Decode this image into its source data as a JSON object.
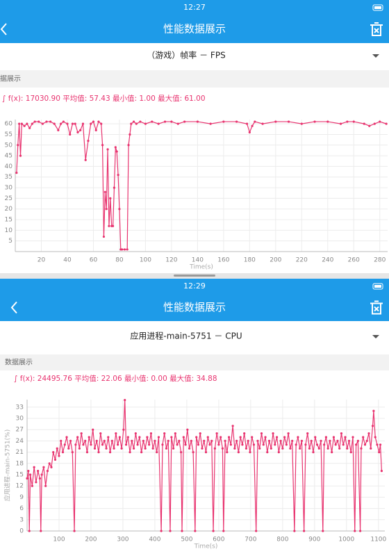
{
  "screens": [
    {
      "time": "12:27",
      "title": "性能数据展示",
      "selector": "（游戏）帧率 － FPS",
      "section": "据展示",
      "stats": "∫ f(x): 17030.90  平均值: 57.43  最小值: 1.00  最大值: 61.00"
    },
    {
      "time": "12:29",
      "title": "性能数据展示",
      "selector": "应用进程-main-5751 － CPU",
      "section": "数据展示",
      "stats": "∫ f(x): 24495.76  平均值: 22.06  最小值: 0.00  最大值: 34.88"
    }
  ],
  "chart_data": [
    {
      "type": "line",
      "x_label": "Time(s)",
      "color": "#e8336f",
      "grid": true,
      "xlim": [
        0,
        286
      ],
      "xticks": [
        20,
        40,
        60,
        80,
        100,
        120,
        140,
        160,
        180,
        200,
        220,
        240,
        260,
        280
      ],
      "ylim": [
        0,
        62
      ],
      "yticks": [
        5,
        10,
        15,
        20,
        25,
        30,
        35,
        40,
        45,
        50,
        55,
        60
      ],
      "x": [
        1,
        2,
        3,
        4,
        5,
        7,
        9,
        11,
        13,
        15,
        18,
        21,
        24,
        27,
        30,
        33,
        35,
        37,
        40,
        42,
        44,
        46,
        48,
        50,
        52,
        54,
        56,
        58,
        60,
        62,
        64,
        66,
        67,
        68,
        69,
        70,
        71,
        72,
        73,
        74,
        75,
        76,
        77,
        78,
        79,
        80,
        81,
        82,
        84,
        86,
        87,
        88,
        89,
        91,
        93,
        96,
        100,
        105,
        110,
        115,
        120,
        125,
        130,
        140,
        150,
        160,
        170,
        178,
        180,
        182,
        184,
        190,
        200,
        210,
        220,
        230,
        240,
        250,
        255,
        260,
        268,
        272,
        276,
        280,
        285
      ],
      "values": [
        37,
        50,
        60,
        45,
        60,
        59,
        60,
        58,
        60,
        61,
        61,
        60,
        61,
        61,
        60,
        57,
        60,
        61,
        60,
        55,
        60,
        60,
        56,
        57,
        60,
        43,
        52,
        60,
        61,
        57,
        61,
        60,
        50,
        7,
        28,
        20,
        48,
        12,
        25,
        12,
        12,
        30,
        49,
        47,
        36,
        20,
        1,
        1,
        1,
        1,
        50,
        55,
        60,
        61,
        60,
        61,
        60,
        61,
        60,
        61,
        61,
        60,
        61,
        61,
        60,
        61,
        61,
        60,
        56,
        59,
        61,
        60,
        61,
        61,
        60,
        61,
        61,
        60,
        61,
        61,
        60,
        59,
        60,
        61,
        60
      ]
    },
    {
      "type": "line",
      "x_label": "Time(s)",
      "y_label": "应用进程-main-5751(%)",
      "color": "#e8336f",
      "grid": true,
      "xlim": [
        0,
        1120
      ],
      "xticks": [
        100,
        200,
        300,
        400,
        500,
        600,
        700,
        800,
        900,
        1000,
        1100
      ],
      "ylim": [
        0,
        35
      ],
      "yticks": [
        0,
        3,
        6,
        9,
        12,
        15,
        18,
        21,
        24,
        27,
        30,
        33
      ],
      "x": [
        0,
        4,
        7,
        10,
        16,
        22,
        28,
        34,
        40,
        43,
        46,
        52,
        58,
        64,
        70,
        76,
        82,
        88,
        94,
        100,
        106,
        112,
        118,
        124,
        130,
        136,
        142,
        148,
        152,
        158,
        164,
        170,
        176,
        182,
        188,
        194,
        200,
        206,
        212,
        218,
        224,
        230,
        236,
        242,
        248,
        254,
        260,
        266,
        272,
        278,
        284,
        290,
        296,
        302,
        306,
        310,
        316,
        322,
        328,
        334,
        340,
        346,
        352,
        358,
        364,
        370,
        376,
        382,
        388,
        394,
        400,
        406,
        412,
        420,
        424,
        430,
        436,
        442,
        448,
        452,
        458,
        464,
        470,
        476,
        482,
        485,
        490,
        496,
        502,
        508,
        514,
        520,
        526,
        530,
        536,
        542,
        548,
        554,
        560,
        566,
        572,
        578,
        583,
        588,
        594,
        600,
        606,
        612,
        615,
        620,
        626,
        632,
        638,
        644,
        650,
        656,
        662,
        668,
        674,
        680,
        686,
        692,
        698,
        704,
        710,
        717,
        722,
        728,
        734,
        740,
        746,
        752,
        758,
        764,
        770,
        776,
        782,
        788,
        794,
        800,
        806,
        812,
        818,
        824,
        830,
        837,
        842,
        848,
        854,
        860,
        867,
        872,
        878,
        884,
        890,
        896,
        902,
        908,
        914,
        920,
        926,
        930,
        936,
        942,
        948,
        954,
        960,
        966,
        972,
        978,
        984,
        990,
        996,
        1002,
        1008,
        1014,
        1020,
        1026,
        1030,
        1036,
        1043,
        1046,
        1052,
        1058,
        1064,
        1070,
        1076,
        1082,
        1085,
        1090,
        1096,
        1102,
        1106,
        1110
      ],
      "values": [
        14,
        16,
        0,
        15,
        12,
        17,
        13,
        16,
        14,
        0,
        15,
        17,
        12,
        16,
        18,
        17,
        21,
        19,
        22,
        20,
        24,
        21,
        23,
        25,
        22,
        24,
        21,
        0,
        23,
        25,
        22,
        26,
        23,
        24,
        21,
        25,
        23,
        27,
        22,
        24,
        21,
        26,
        23,
        24,
        22,
        25,
        21,
        24,
        22,
        26,
        23,
        25,
        22,
        27,
        34.88,
        23,
        25,
        21,
        24,
        22,
        26,
        23,
        25,
        21,
        24,
        22,
        25,
        23,
        26,
        22,
        24,
        21,
        25,
        0,
        23,
        26,
        22,
        24,
        0,
        25,
        22,
        26,
        23,
        24,
        21,
        0,
        25,
        23,
        27,
        22,
        24,
        21,
        0,
        25,
        23,
        26,
        22,
        24,
        21,
        25,
        23,
        24,
        0,
        22,
        26,
        23,
        25,
        22,
        0,
        24,
        21,
        25,
        23,
        28,
        22,
        24,
        21,
        25,
        23,
        26,
        22,
        24,
        21,
        25,
        23,
        0,
        24,
        22,
        26,
        23,
        25,
        21,
        24,
        22,
        26,
        23,
        25,
        21,
        24,
        22,
        25,
        23,
        26,
        22,
        24,
        0,
        23,
        25,
        22,
        24,
        0,
        23,
        26,
        22,
        24,
        21,
        25,
        23,
        22,
        24,
        0,
        23,
        25,
        22,
        24,
        21,
        25,
        23,
        24,
        22,
        26,
        23,
        25,
        22,
        24,
        21,
        25,
        0,
        23,
        24,
        0,
        22,
        25,
        23,
        24,
        26,
        22,
        28,
        32,
        25,
        23,
        21,
        23,
        16
      ]
    }
  ]
}
